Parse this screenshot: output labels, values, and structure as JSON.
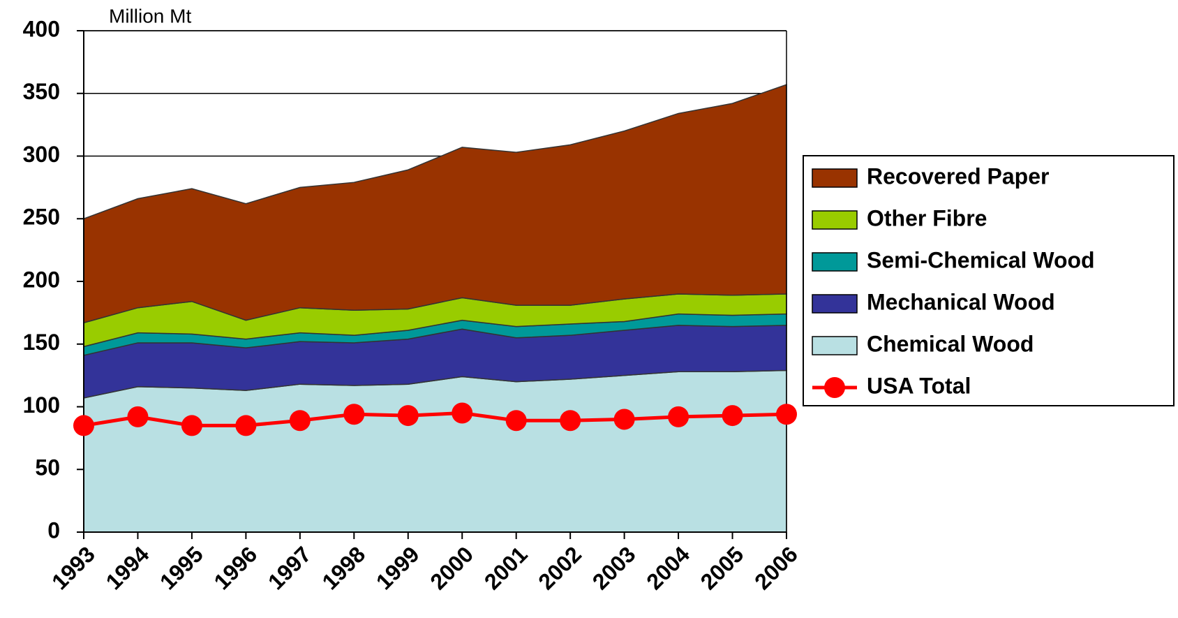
{
  "chart_data": {
    "type": "area",
    "stacked": true,
    "y_axis_label": "Million Mt",
    "categories": [
      "1993",
      "1994",
      "1995",
      "1996",
      "1997",
      "1998",
      "1999",
      "2000",
      "2001",
      "2002",
      "2003",
      "2004",
      "2005",
      "2006"
    ],
    "series": [
      {
        "name": "Chemical Wood",
        "color": "#b9e0e3",
        "values": [
          107,
          116,
          115,
          113,
          118,
          117,
          118,
          124,
          120,
          122,
          125,
          128,
          128,
          129
        ]
      },
      {
        "name": "Mechanical Wood",
        "color": "#333399",
        "values": [
          34,
          35,
          36,
          34,
          34,
          34,
          36,
          38,
          35,
          35,
          36,
          37,
          36,
          36
        ]
      },
      {
        "name": "Semi-Chemical Wood",
        "color": "#009999",
        "values": [
          7,
          8,
          7,
          7,
          7,
          6,
          7,
          7,
          9,
          9,
          7,
          9,
          9,
          9
        ]
      },
      {
        "name": "Other Fibre",
        "color": "#99cc00",
        "values": [
          19,
          20,
          26,
          15,
          20,
          20,
          17,
          18,
          17,
          15,
          18,
          16,
          16,
          16
        ]
      },
      {
        "name": "Recovered Paper",
        "color": "#993300",
        "values": [
          83,
          87,
          90,
          93,
          96,
          102,
          111,
          120,
          122,
          128,
          134,
          144,
          153,
          167
        ]
      },
      {
        "name": "USA Total",
        "color": "#ff0000",
        "type": "line",
        "values": [
          85,
          92,
          85,
          85,
          89,
          94,
          93,
          95,
          89,
          89,
          90,
          92,
          93,
          94
        ]
      }
    ],
    "ylim": [
      0,
      400
    ],
    "yticks": [
      0,
      50,
      100,
      150,
      200,
      250,
      300,
      350,
      400
    ],
    "grid": true,
    "legend": "right"
  }
}
